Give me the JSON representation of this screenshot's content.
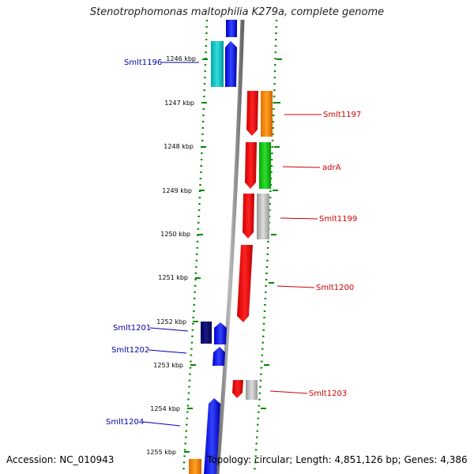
{
  "title": "Stenotrophomonas maltophilia K279a, complete genome",
  "footer": {
    "accession": "Accession: NC_010943",
    "summary": "Topology: circular; Length: 4,851,126 bp; Genes: 4,386"
  },
  "colors": {
    "left_label": "#0000aa",
    "right_label": "#cc0000",
    "tick": "#008800",
    "backbone": "#888888"
  },
  "kbp_ticks": [
    "1246 kbp",
    "1247 kbp",
    "1248 kbp",
    "1249 kbp",
    "1250 kbp",
    "1251 kbp",
    "1252 kbp",
    "1253 kbp",
    "1254 kbp",
    "1255 kbp"
  ],
  "gene_labels_left": [
    "Smlt1196",
    "Smlt1201",
    "Smlt1202",
    "Smlt1204"
  ],
  "gene_labels_right": [
    "Smlt1197",
    "adrA",
    "Smlt1199",
    "Smlt1200",
    "Smlt1203"
  ]
}
